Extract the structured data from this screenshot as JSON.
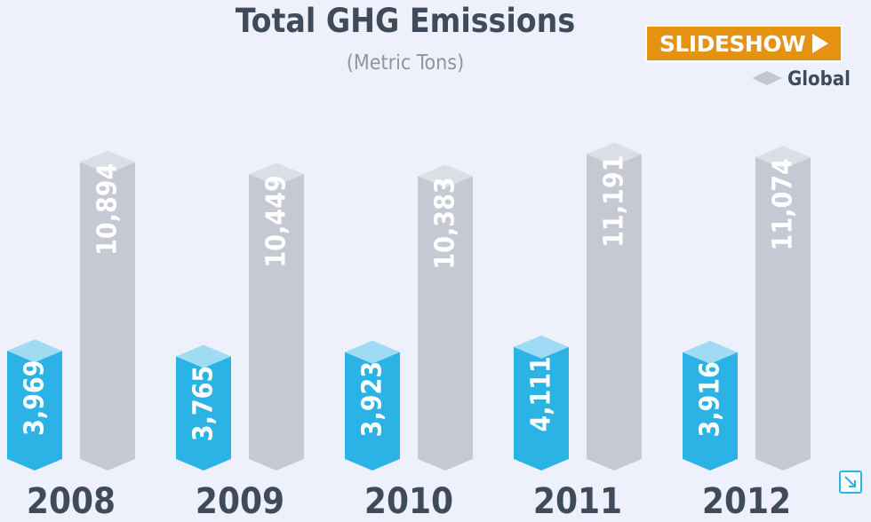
{
  "chart_data": {
    "type": "bar",
    "title": "Total GHG Emissions",
    "subtitle": "(Metric Tons)",
    "categories": [
      "2008",
      "2009",
      "2010",
      "2011",
      "2012"
    ],
    "series": [
      {
        "values": [
          3969,
          3765,
          3923,
          4111,
          3916
        ],
        "labels": [
          "3,969",
          "3,765",
          "3,923",
          "4,111",
          "3,916"
        ],
        "color": "#2bb3e6",
        "top_color": "#9fdcf4"
      },
      {
        "name": "Global",
        "values": [
          10894,
          10449,
          10383,
          11191,
          11074
        ],
        "labels": [
          "10,894",
          "10,449",
          "10,383",
          "11,191",
          "11,074"
        ],
        "color": "#c6c8d3",
        "top_color": "#dcdee6"
      }
    ],
    "legend_position": "top-right",
    "grid": false
  },
  "ui": {
    "slideshow_label": "SLIDESHOW",
    "play_icon": "play-icon",
    "expand_icon": "expand-icon"
  }
}
